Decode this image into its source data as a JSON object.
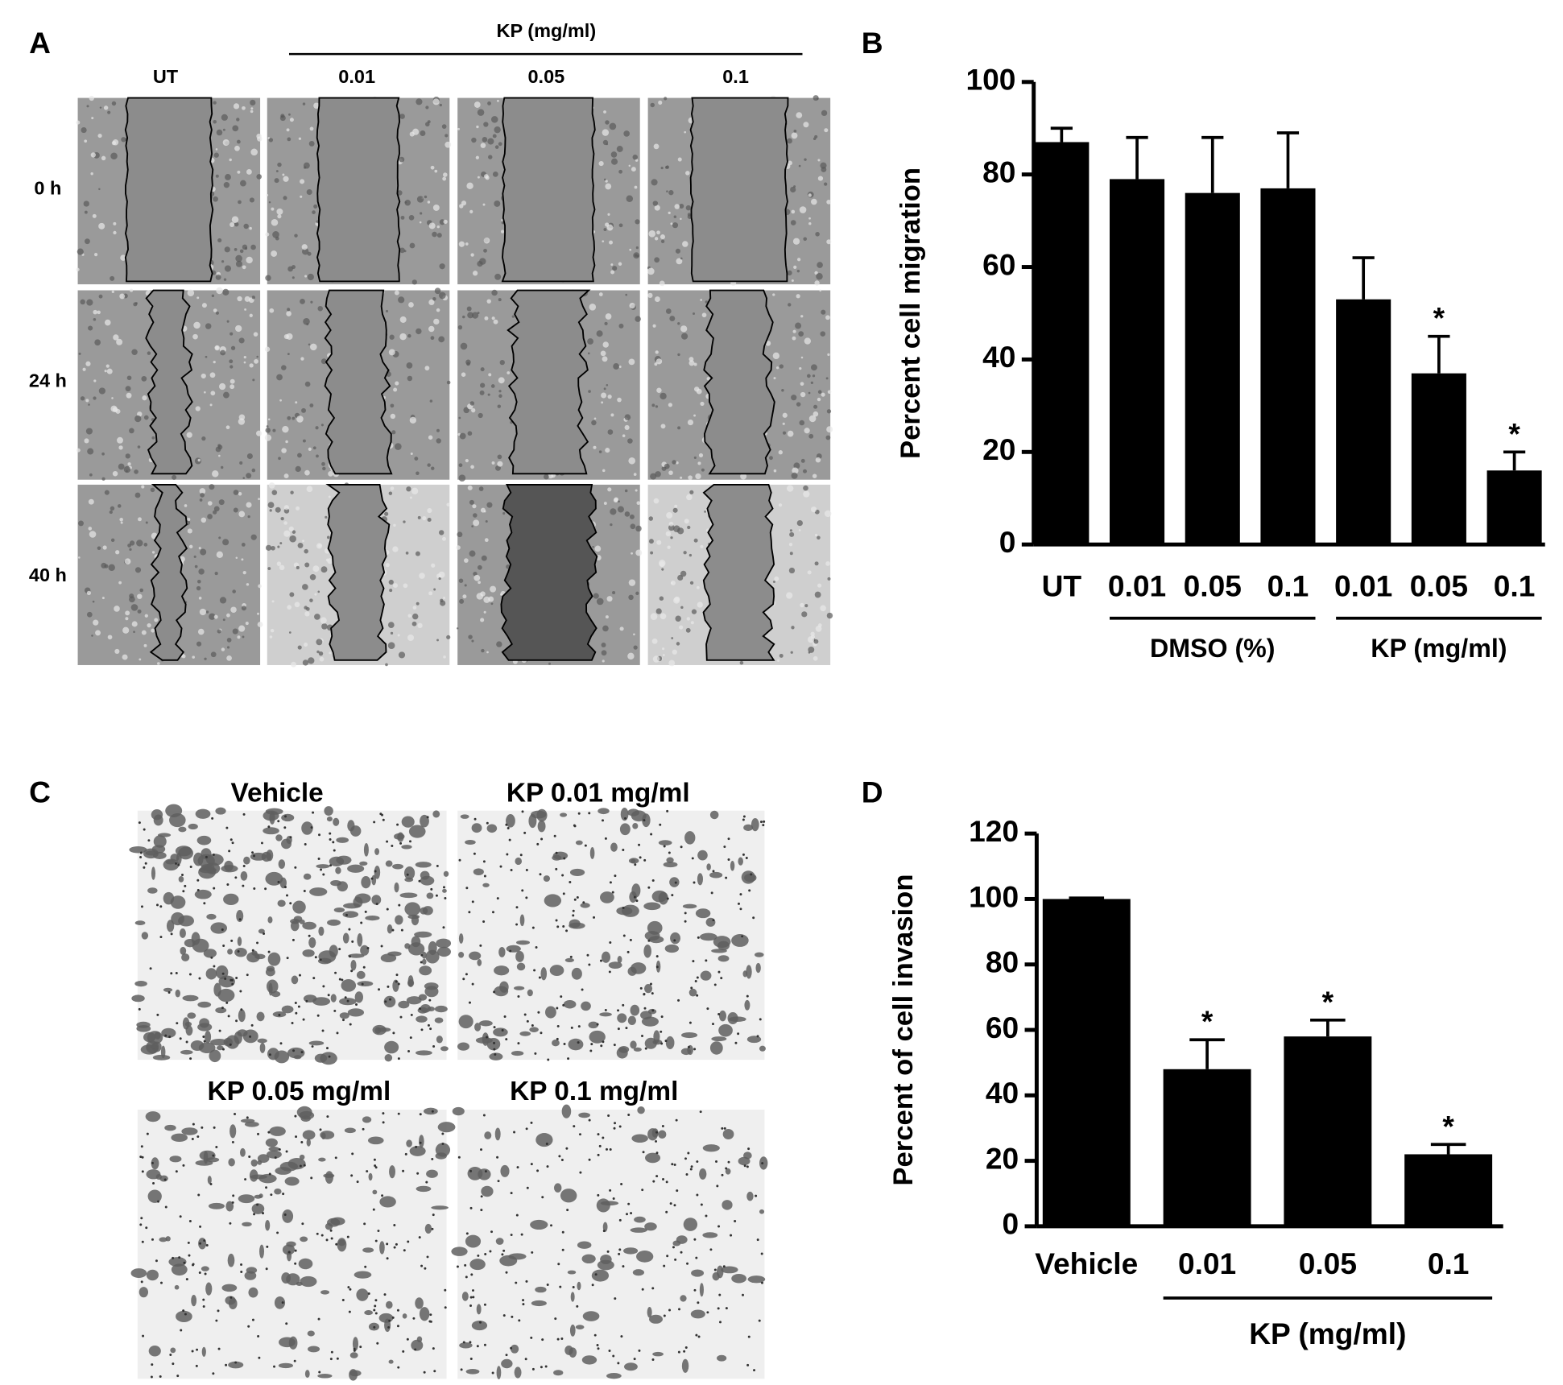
{
  "panel_a": {
    "label": "A",
    "group_label": "KP (mg/ml)",
    "columns": [
      "UT",
      "0.01",
      "0.05",
      "0.1"
    ],
    "rows": [
      "0 h",
      "24 h",
      "40 h"
    ]
  },
  "panel_c": {
    "label": "C",
    "images": [
      "Vehicle",
      "KP 0.01 mg/ml",
      "KP 0.05 mg/ml",
      "KP 0.1 mg/ml"
    ]
  },
  "chart_data": [
    {
      "type": "bar",
      "label": "B",
      "y_label": "Percent cell migration",
      "color": "#000000",
      "ylim": [
        0,
        100
      ],
      "yticks": [
        0,
        20,
        40,
        60,
        80,
        100
      ],
      "groups": [
        {
          "name": null,
          "categories": [
            "UT"
          ],
          "values": [
            87
          ],
          "errors": [
            3
          ],
          "markers": [
            null
          ]
        },
        {
          "name": "DMSO (%)",
          "categories": [
            "0.01",
            "0.05",
            "0.1"
          ],
          "values": [
            79,
            76,
            77
          ],
          "errors": [
            9,
            12,
            12
          ],
          "markers": [
            null,
            null,
            null
          ]
        },
        {
          "name": "KP (mg/ml)",
          "categories": [
            "0.01",
            "0.05",
            "0.1"
          ],
          "values": [
            53,
            37,
            16
          ],
          "errors": [
            9,
            8,
            4
          ],
          "markers": [
            null,
            "*",
            "*"
          ]
        }
      ]
    },
    {
      "type": "bar",
      "label": "D",
      "y_label": "Percent of cell invasion",
      "color": "#000000",
      "ylim": [
        0,
        120
      ],
      "yticks": [
        0,
        20,
        40,
        60,
        80,
        100,
        120
      ],
      "groups": [
        {
          "name": null,
          "categories": [
            "Vehicle"
          ],
          "values": [
            100
          ],
          "errors": [
            0.3
          ],
          "markers": [
            null
          ]
        },
        {
          "name": "KP (mg/ml)",
          "categories": [
            "0.01",
            "0.05",
            "0.1"
          ],
          "values": [
            48,
            58,
            22
          ],
          "errors": [
            9,
            5,
            3
          ],
          "markers": [
            "*",
            "*",
            "*"
          ]
        }
      ]
    }
  ]
}
